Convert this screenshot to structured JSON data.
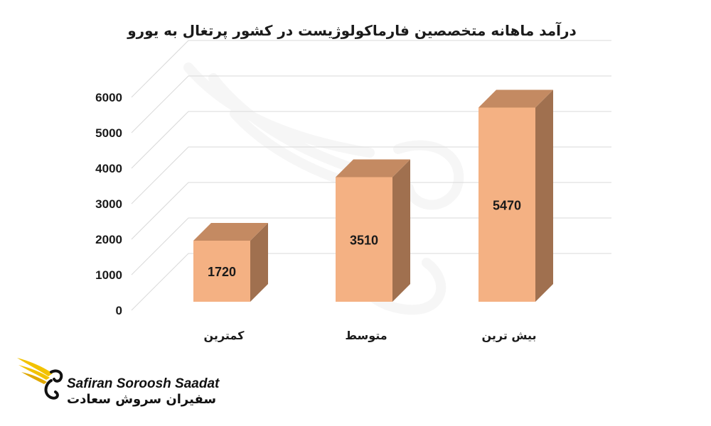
{
  "chart_data": {
    "type": "bar",
    "title": "درآمد ماهانه متخصصین فارماکولوژیست در کشور پرتغال به یورو",
    "categories": [
      "کمترین",
      "متوسط",
      "بیش ترین"
    ],
    "values": [
      1720,
      3510,
      5470
    ],
    "data_labels": [
      "1720",
      "3510",
      "5470"
    ],
    "ylim": [
      0,
      6000
    ],
    "yticks": [
      "0",
      "1000",
      "2000",
      "3000",
      "4000",
      "5000",
      "6000"
    ],
    "grid": true,
    "style": "3d-column",
    "colors": {
      "front": "#F4B183",
      "side": "#A0704F",
      "top": "#C48A62",
      "grid": "#d9d9d9",
      "text": "#1a1a1a"
    }
  },
  "logo": {
    "latin": "Safiran Soroosh Saadat",
    "farsi": "سفیران سروش سعادت",
    "colors": {
      "wing": "#F2C200",
      "wing_dark": "#E0A800",
      "text": "#111111"
    }
  }
}
